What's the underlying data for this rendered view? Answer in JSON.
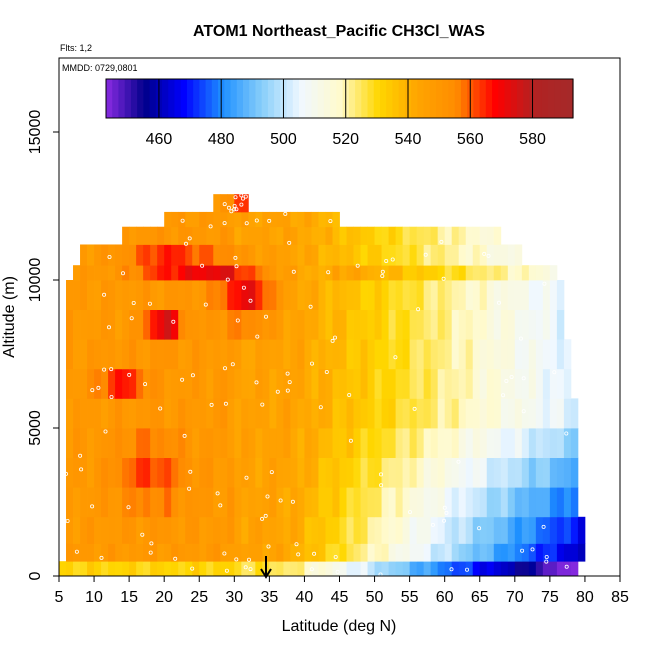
{
  "chart_data": {
    "type": "heatmap",
    "title": "ATOM1 Northeast_Pacific CH3Cl_WAS",
    "flights_label": "Flts: 1,2",
    "dates_label": "MMDD: 0729,0801",
    "xlabel": "Latitude (deg N)",
    "ylabel": "Altitude (m)",
    "xlim": [
      5,
      85
    ],
    "ylim": [
      0,
      17500
    ],
    "x_ticks": [
      "5",
      "10",
      "15",
      "20",
      "25",
      "30",
      "35",
      "40",
      "45",
      "50",
      "55",
      "60",
      "65",
      "70",
      "75",
      "80",
      "85"
    ],
    "y_ticks": [
      "0",
      "5000",
      "10000",
      "15000"
    ],
    "colorbar": {
      "range": [
        443,
        593
      ],
      "tick_labels": [
        "460",
        "480",
        "500",
        "520",
        "540",
        "560",
        "580"
      ],
      "tick_values": [
        460,
        480,
        500,
        520,
        540,
        560,
        580
      ],
      "colors": [
        "#8a2be2",
        "#00008b",
        "#0000ff",
        "#1e90ff",
        "#87cefa",
        "#f0f8ff",
        "#fffacd",
        "#ffd700",
        "#ffa500",
        "#ff8c00",
        "#ff0000",
        "#b22222",
        "#a52a2a"
      ]
    },
    "marker": {
      "latitude": 35,
      "label": "arrow"
    },
    "grid": false,
    "legend": "top"
  }
}
